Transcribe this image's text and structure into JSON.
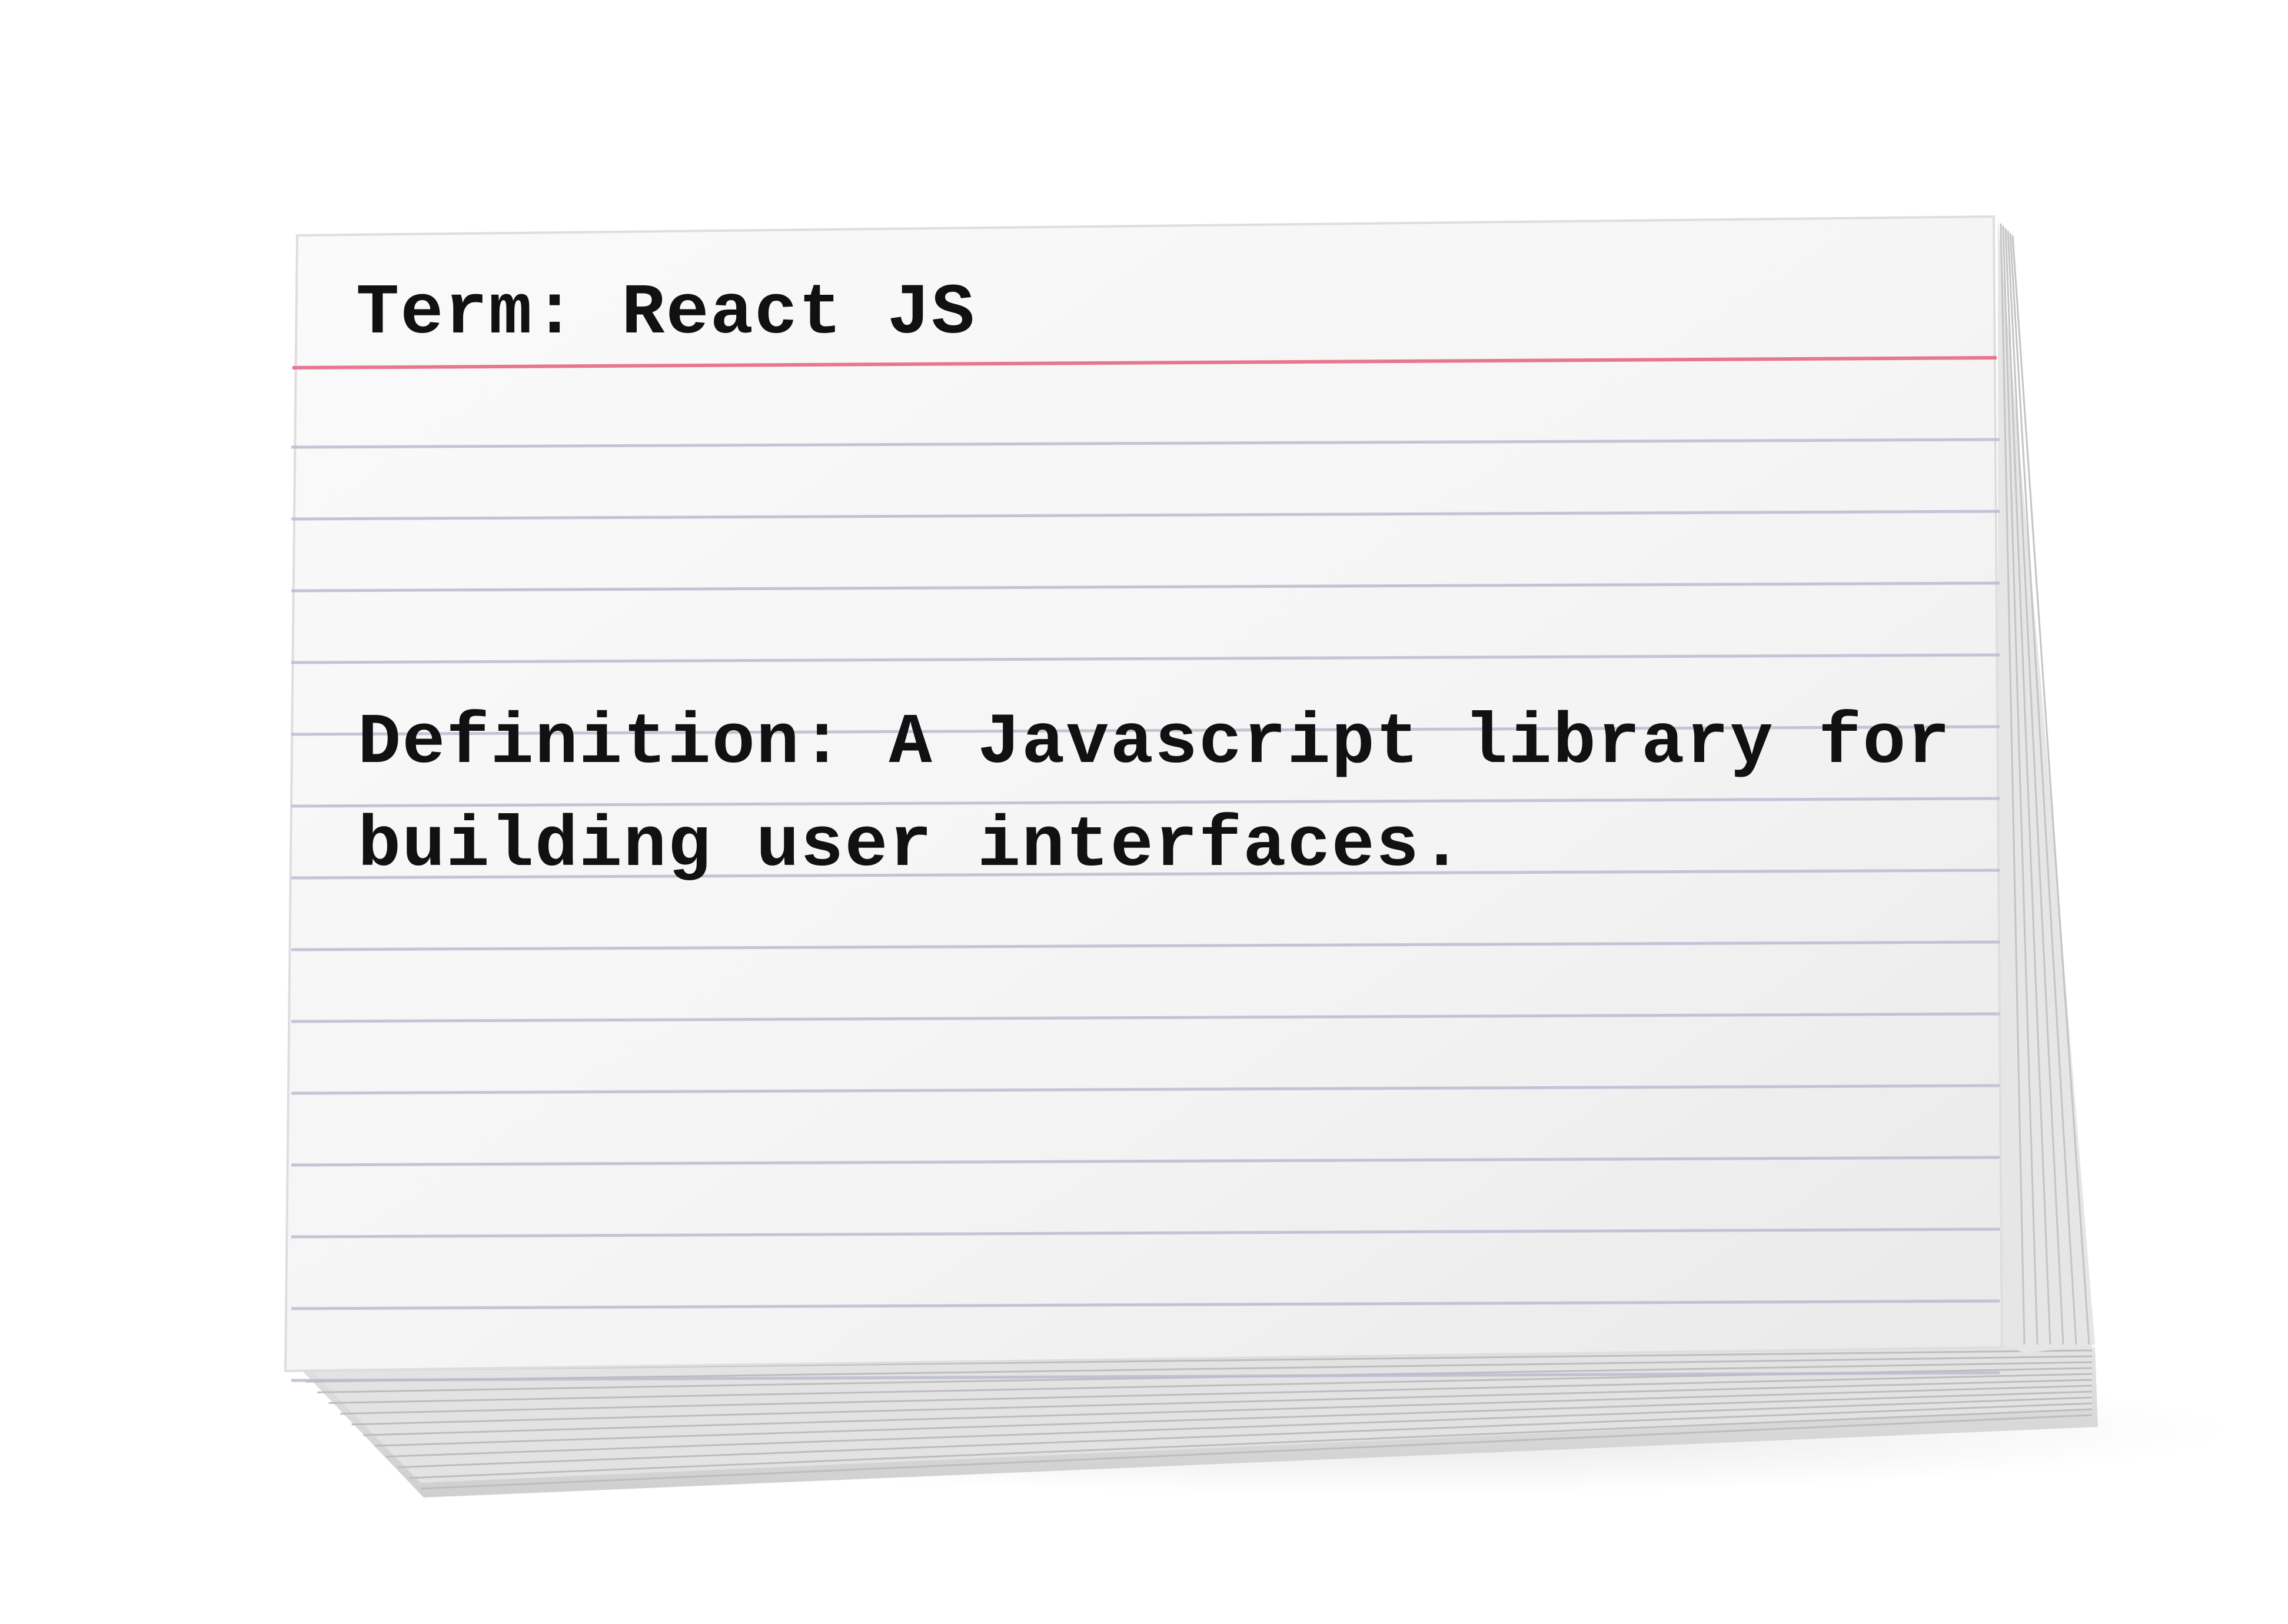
{
  "card": {
    "term": "Term: React JS",
    "definition_lines": [
      "Definition: A Javascript library for",
      "building user interfaces."
    ]
  },
  "colors": {
    "background": "#ffffff",
    "card_face": "#f7f7f7",
    "header_rule": "#e8768f",
    "ruled_lines": "#b9bccf",
    "text": "#111111"
  }
}
